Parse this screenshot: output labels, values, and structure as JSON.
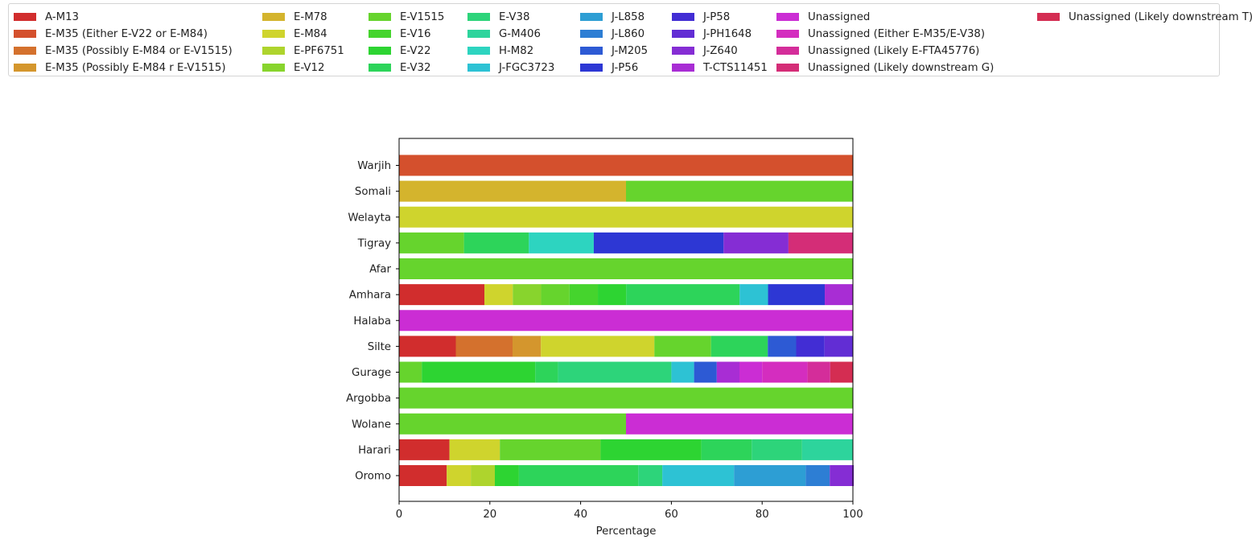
{
  "chart_data": {
    "type": "bar",
    "orientation": "horizontal",
    "stacked": true,
    "xlabel": "Percentage",
    "ylabel": "",
    "xlim": [
      0,
      100
    ],
    "xticks": [
      0,
      20,
      40,
      60,
      80,
      100
    ],
    "grid": false,
    "legend_position": "top",
    "categories": [
      "Oromo",
      "Harari",
      "Wolane",
      "Argobba",
      "Gurage",
      "Silte",
      "Halaba",
      "Amhara",
      "Afar",
      "Tigray",
      "Welayta",
      "Somali",
      "Warjih"
    ],
    "series": [
      {
        "name": "A-M13",
        "color": "#d12d2d",
        "values": [
          10.5,
          11.1,
          0,
          0,
          0,
          12.5,
          0,
          18.8,
          0,
          0,
          0,
          0,
          0
        ]
      },
      {
        "name": "E-M35 (Either E-V22 or E-M84)",
        "color": "#d4502d",
        "values": [
          0,
          0,
          0,
          0,
          0,
          0,
          0,
          0,
          0,
          0,
          0,
          0,
          100
        ]
      },
      {
        "name": "E-M35 (Possibly E-M84 or E-V1515)",
        "color": "#d4712d",
        "values": [
          0,
          0,
          0,
          0,
          0,
          12.5,
          0,
          0,
          0,
          0,
          0,
          0,
          0
        ]
      },
      {
        "name": "E-M35 (Possibly E-M84 r E-V1515)",
        "color": "#d4962d",
        "values": [
          0,
          0,
          0,
          0,
          0,
          6.25,
          0,
          0,
          0,
          0,
          0,
          0,
          0
        ]
      },
      {
        "name": "E-M78",
        "color": "#d4b42d",
        "values": [
          0,
          0,
          0,
          0,
          0,
          0,
          0,
          0,
          0,
          0,
          0,
          50,
          0
        ]
      },
      {
        "name": "E-M84",
        "color": "#cfd42d",
        "values": [
          5.3,
          11.1,
          0,
          0,
          0,
          25,
          0,
          6.25,
          0,
          0,
          100,
          0,
          0
        ]
      },
      {
        "name": "E-PF6751",
        "color": "#aed42d",
        "values": [
          5.3,
          0,
          0,
          0,
          0,
          0,
          0,
          0,
          0,
          0,
          0,
          0,
          0
        ]
      },
      {
        "name": "E-V12",
        "color": "#88d42d",
        "values": [
          0,
          0,
          0,
          0,
          0,
          0,
          0,
          6.25,
          0,
          0,
          0,
          0,
          0
        ]
      },
      {
        "name": "E-V1515",
        "color": "#66d42d",
        "values": [
          0,
          22.2,
          50,
          100,
          5,
          12.5,
          0,
          6.25,
          100,
          14.3,
          0,
          50,
          0
        ]
      },
      {
        "name": "E-V16",
        "color": "#45d42d",
        "values": [
          0,
          0,
          0,
          0,
          0,
          0,
          0,
          6.25,
          0,
          0,
          0,
          0,
          0
        ]
      },
      {
        "name": "E-V22",
        "color": "#2dd432",
        "values": [
          5.3,
          22.2,
          0,
          0,
          25,
          0,
          0,
          6.25,
          0,
          0,
          0,
          0,
          0
        ]
      },
      {
        "name": "E-V32",
        "color": "#2dd45a",
        "values": [
          26.3,
          11.1,
          0,
          0,
          5,
          12.5,
          0,
          25,
          0,
          14.3,
          0,
          0,
          0
        ]
      },
      {
        "name": "E-V38",
        "color": "#2dd47a",
        "values": [
          5.3,
          11.1,
          0,
          0,
          25,
          0,
          0,
          0,
          0,
          0,
          0,
          0,
          0
        ]
      },
      {
        "name": "G-M406",
        "color": "#2dd49c",
        "values": [
          0,
          11.2,
          0,
          0,
          0,
          0,
          0,
          0,
          0,
          0,
          0,
          0,
          0
        ]
      },
      {
        "name": "H-M82",
        "color": "#2dd4c0",
        "values": [
          0,
          0,
          0,
          0,
          0,
          0,
          0,
          0,
          0,
          14.3,
          0,
          0,
          0
        ]
      },
      {
        "name": "J-FGC3723",
        "color": "#2dc2d4",
        "values": [
          15.8,
          0,
          0,
          0,
          5,
          0,
          0,
          6.25,
          0,
          0,
          0,
          0,
          0
        ]
      },
      {
        "name": "J-L858",
        "color": "#2d9ed4",
        "values": [
          15.8,
          0,
          0,
          0,
          0,
          0,
          0,
          0,
          0,
          0,
          0,
          0,
          0
        ]
      },
      {
        "name": "J-L860",
        "color": "#2d7ed4",
        "values": [
          5.3,
          0,
          0,
          0,
          0,
          0,
          0,
          0,
          0,
          0,
          0,
          0,
          0
        ]
      },
      {
        "name": "J-M205",
        "color": "#2d5ad4",
        "values": [
          0,
          0,
          0,
          0,
          5,
          6.25,
          0,
          0,
          0,
          0,
          0,
          0,
          0
        ]
      },
      {
        "name": "J-P56",
        "color": "#2d37d4",
        "values": [
          0,
          0,
          0,
          0,
          0,
          0,
          0,
          12.5,
          0,
          28.6,
          0,
          0,
          0
        ]
      },
      {
        "name": "J-P58",
        "color": "#422dd4",
        "values": [
          0,
          0,
          0,
          0,
          0,
          6.25,
          0,
          0,
          0,
          0,
          0,
          0,
          0
        ]
      },
      {
        "name": "J-PH1648",
        "color": "#622dd4",
        "values": [
          0,
          0,
          0,
          0,
          0,
          6.25,
          0,
          0,
          0,
          0,
          0,
          0,
          0
        ]
      },
      {
        "name": "J-Z640",
        "color": "#852dd4",
        "values": [
          5.3,
          0,
          0,
          0,
          0,
          0,
          0,
          0,
          0,
          14.3,
          0,
          0,
          0
        ]
      },
      {
        "name": "T-CTS11451",
        "color": "#a82dd4",
        "values": [
          0,
          0,
          0,
          0,
          5,
          0,
          0,
          6.25,
          0,
          0,
          0,
          0,
          0
        ]
      },
      {
        "name": "Unassigned",
        "color": "#cb2dd4",
        "values": [
          0,
          0,
          50,
          0,
          5,
          0,
          100,
          0,
          0,
          0,
          0,
          0,
          0
        ]
      },
      {
        "name": "Unassigned (Either E-M35/E-V38)",
        "color": "#d42dbf",
        "values": [
          0,
          0,
          0,
          0,
          10,
          0,
          0,
          0,
          0,
          0,
          0,
          0,
          0
        ]
      },
      {
        "name": "Unassigned (Likely E-FTA45776)",
        "color": "#d42d9a",
        "values": [
          0,
          0,
          0,
          0,
          5,
          0,
          0,
          0,
          0,
          0,
          0,
          0,
          0
        ]
      },
      {
        "name": "Unassigned (Likely downstream G)",
        "color": "#d42d77",
        "values": [
          0,
          0,
          0,
          0,
          0,
          0,
          0,
          0,
          0,
          14.2,
          0,
          0,
          0
        ]
      },
      {
        "name": "Unassigned (Likely downstream T)",
        "color": "#d42d52",
        "values": [
          0,
          0,
          0,
          0,
          5,
          0,
          0,
          0,
          0,
          0,
          0,
          0,
          0
        ]
      }
    ]
  }
}
